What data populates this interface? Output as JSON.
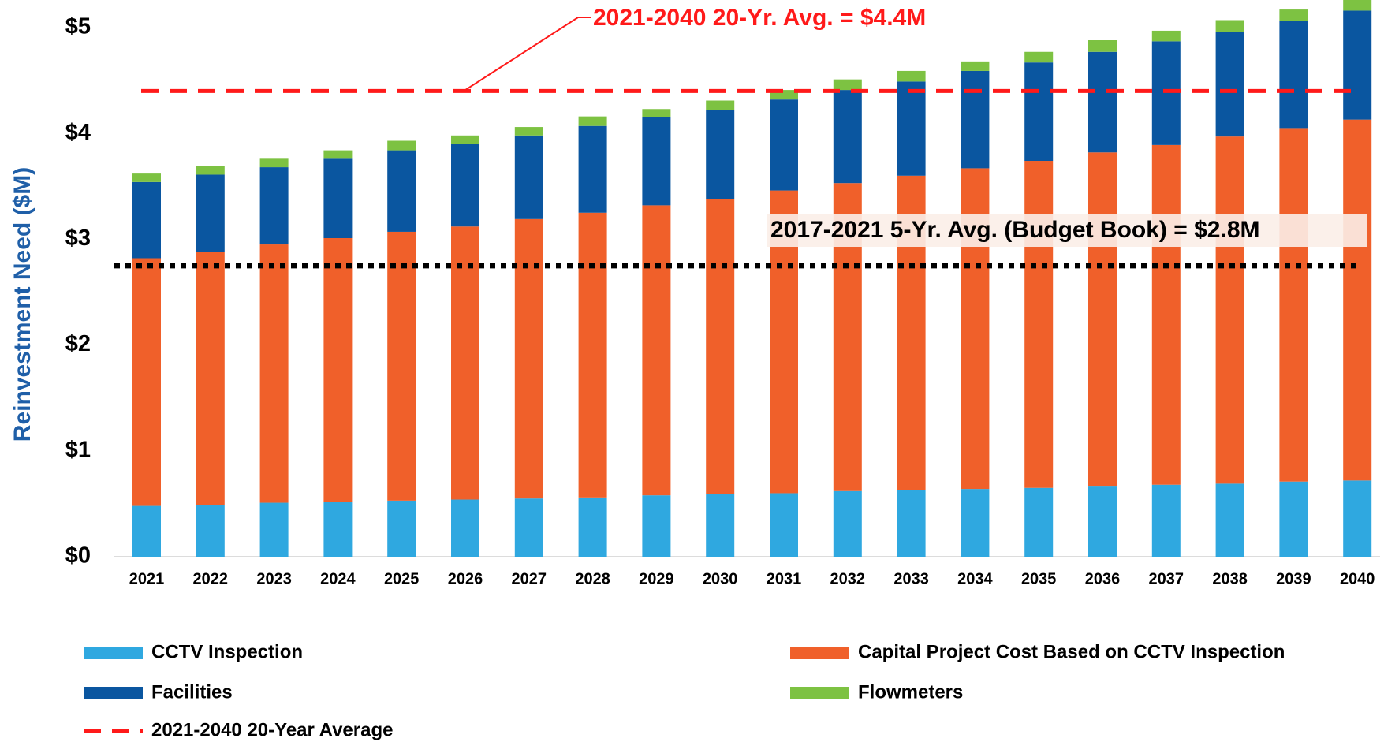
{
  "chart_data": {
    "type": "stacked_bar",
    "y_label": "Reinvestment Need ($M)",
    "categories": [
      "2021",
      "2022",
      "2023",
      "2024",
      "2025",
      "2026",
      "2027",
      "2028",
      "2029",
      "2030",
      "2031",
      "2032",
      "2033",
      "2034",
      "2035",
      "2036",
      "2037",
      "2038",
      "2039",
      "2040"
    ],
    "series": [
      {
        "name": "CCTV Inspection",
        "color": "#2fa8e0",
        "values": [
          0.48,
          0.49,
          0.51,
          0.52,
          0.53,
          0.54,
          0.55,
          0.56,
          0.58,
          0.59,
          0.6,
          0.62,
          0.63,
          0.64,
          0.65,
          0.67,
          0.68,
          0.69,
          0.71,
          0.72
        ]
      },
      {
        "name": "Capital Project Cost Based on CCTV Inspection",
        "color": "#f0602a",
        "values": [
          2.34,
          2.39,
          2.44,
          2.49,
          2.54,
          2.58,
          2.64,
          2.69,
          2.74,
          2.79,
          2.86,
          2.91,
          2.97,
          3.03,
          3.09,
          3.15,
          3.21,
          3.28,
          3.34,
          3.41
        ]
      },
      {
        "name": "Facilities",
        "color": "#0a56a0",
        "values": [
          0.72,
          0.73,
          0.73,
          0.75,
          0.77,
          0.78,
          0.79,
          0.82,
          0.83,
          0.84,
          0.86,
          0.88,
          0.89,
          0.92,
          0.93,
          0.95,
          0.98,
          0.99,
          1.01,
          1.03
        ]
      },
      {
        "name": "Flowmeters",
        "color": "#7dc242",
        "values": [
          0.08,
          0.08,
          0.08,
          0.08,
          0.09,
          0.08,
          0.08,
          0.09,
          0.08,
          0.09,
          0.09,
          0.1,
          0.1,
          0.09,
          0.1,
          0.11,
          0.1,
          0.11,
          0.11,
          0.1
        ]
      }
    ],
    "reference_lines": [
      {
        "name": "2021-2040 20-Year Average",
        "value": 4.4,
        "color": "#ff1a1a",
        "style": "dashed",
        "annotation": "2021-2040 20-Yr. Avg. = $4.4M"
      },
      {
        "value": 2.75,
        "color": "#000000",
        "style": "dotted",
        "annotation": "2017-2021 5-Yr. Avg. (Budget Book) = $2.8M"
      }
    ],
    "ylim": [
      0,
      5.26
    ],
    "yticks": [
      {
        "value": 0,
        "label": "$0"
      },
      {
        "value": 1,
        "label": "$1"
      },
      {
        "value": 2,
        "label": "$2"
      },
      {
        "value": 3,
        "label": "$3"
      },
      {
        "value": 4,
        "label": "$4"
      },
      {
        "value": 5,
        "label": "$5"
      }
    ]
  }
}
